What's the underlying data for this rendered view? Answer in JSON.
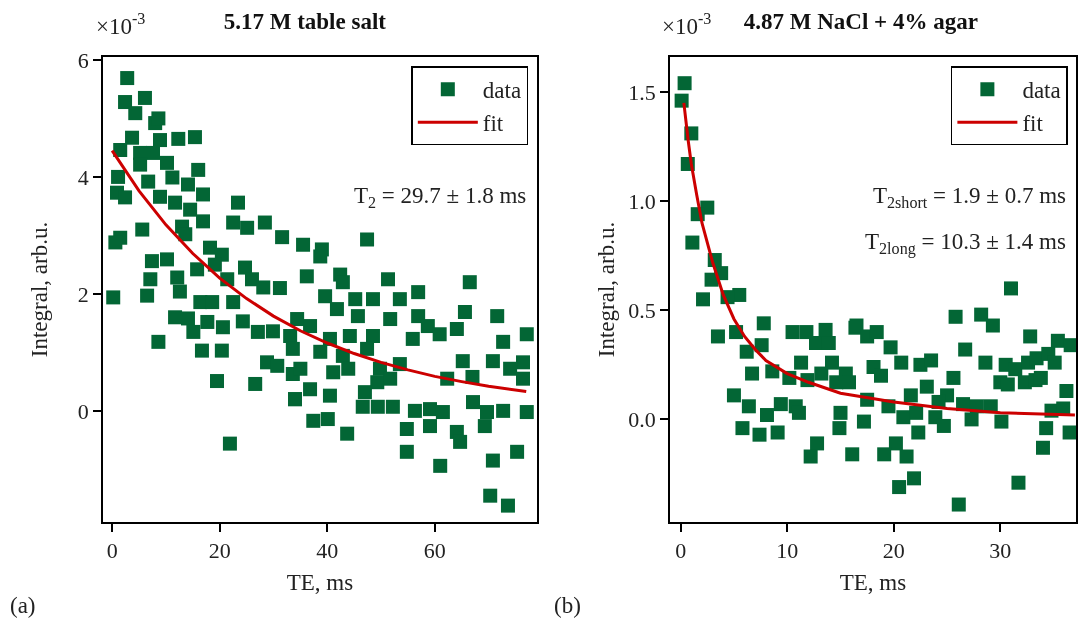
{
  "chart_data": [
    {
      "type": "scatter",
      "title": "5.17 M table salt",
      "xlabel": "TE, ms",
      "ylabel": "Integral, arb.u.",
      "legend": "top right",
      "grid": false,
      "xlim": [
        -1.7,
        79
      ],
      "xticks": [
        0,
        20,
        40,
        60
      ],
      "ylim": [
        -1.9,
        6.05
      ],
      "yticks": [
        0,
        2,
        4,
        6
      ],
      "annotations": [
        "×10$^{-3}$",
        "T$_{2}$ = 29.7 ± 1.8 ms",
        "(a)"
      ],
      "series": [
        {
          "name": "data",
          "marker": "square",
          "color": "#036635",
          "x": [
            2.8,
            2.4,
            6.1,
            4.3,
            8.0,
            8.6,
            3.7,
            1.5,
            5.2,
            8.9,
            12.3,
            15.4,
            7.6,
            10.2,
            5.2,
            1.1,
            11.2,
            16.0,
            0.9,
            2.4,
            6.7,
            8.9,
            11.7,
            14.1,
            16.9,
            23.4,
            14.5,
            16.9,
            13.0,
            22.5,
            25.1,
            28.4,
            31.6,
            13.6,
            1.5,
            5.6,
            0.6,
            18.2,
            20.4,
            7.4,
            10.2,
            15.8,
            19.1,
            24.7,
            7.1,
            12.1,
            21.4,
            26.0,
            0.2,
            6.5,
            12.6,
            28.1,
            31.2,
            16.4,
            18.6,
            22.5,
            11.7,
            14.1,
            17.7,
            15.1,
            20.6,
            24.3,
            27.1,
            29.9,
            33.1,
            8.6,
            16.7,
            20.4,
            28.8,
            30.7,
            33.6,
            19.5,
            26.6,
            34.0,
            21.9,
            47.4,
            35.5,
            39.0,
            38.7,
            66.5,
            36.2,
            42.4,
            42.9,
            51.3,
            56.9,
            39.6,
            45.2,
            48.5,
            53.5,
            71.6,
            41.8,
            45.7,
            51.7,
            56.9,
            58.7,
            65.6,
            34.4,
            36.8,
            77.1,
            64.1,
            60.9,
            55.9,
            40.5,
            44.2,
            48.5,
            72.7,
            33.6,
            38.7,
            42.9,
            47.4,
            49.8,
            53.5,
            65.2,
            70.8,
            76.4,
            35.0,
            41.1,
            43.9,
            49.3,
            51.7,
            62.3,
            67.0,
            74.0,
            76.4,
            36.8,
            40.5,
            34.0,
            47.0,
            49.4,
            46.6,
            52.2,
            56.3,
            59.1,
            61.5,
            67.1,
            69.7,
            72.7,
            77.1,
            40.1,
            37.4,
            59.1,
            64.1,
            69.3,
            43.7,
            54.8,
            64.7,
            54.8,
            61.0,
            70.8,
            75.3,
            70.3,
            73.6
          ],
          "values": [
            5.69,
            5.28,
            5.35,
            5.09,
            4.92,
            5.0,
            4.67,
            4.46,
            4.41,
            4.63,
            4.65,
            4.68,
            4.41,
            4.24,
            4.21,
            4.0,
            3.99,
            4.12,
            3.73,
            3.65,
            3.92,
            3.66,
            3.56,
            3.87,
            3.7,
            3.56,
            3.44,
            3.24,
            3.15,
            3.22,
            3.13,
            3.22,
            2.97,
            3.02,
            2.96,
            3.1,
            2.88,
            2.79,
            2.67,
            2.56,
            2.59,
            2.42,
            2.5,
            2.45,
            2.25,
            2.28,
            2.25,
            2.25,
            1.94,
            1.97,
            2.04,
            2.11,
            2.1,
            1.86,
            1.86,
            1.86,
            1.6,
            1.58,
            1.52,
            1.35,
            1.43,
            1.53,
            1.35,
            1.36,
            1.28,
            1.18,
            1.03,
            1.03,
            0.83,
            0.77,
            0.63,
            0.51,
            0.46,
            0.2,
            -0.56,
            2.93,
            2.84,
            2.76,
            2.64,
            2.2,
            2.3,
            2.33,
            2.2,
            2.25,
            2.03,
            1.96,
            1.91,
            1.91,
            1.91,
            1.62,
            1.74,
            1.62,
            1.57,
            1.62,
            1.45,
            1.69,
            1.57,
            1.45,
            1.31,
            1.4,
            1.31,
            1.23,
            1.23,
            1.28,
            1.28,
            1.18,
            1.06,
            1.01,
            0.94,
            1.06,
            0.72,
            0.8,
            0.85,
            0.85,
            0.83,
            0.72,
            0.66,
            0.72,
            0.49,
            0.55,
            0.55,
            0.58,
            0.72,
            0.55,
            0.37,
            0.26,
            0.2,
            0.32,
            0.07,
            0.07,
            0.07,
            0.0,
            0.03,
            -0.02,
            0.15,
            -0.02,
            0.0,
            -0.02,
            -0.14,
            -0.17,
            -0.26,
            -0.36,
            -0.26,
            -0.39,
            -0.31,
            -0.53,
            -0.7,
            -0.94,
            -0.85,
            -0.7,
            -1.45,
            -1.62
          ]
        },
        {
          "name": "fit",
          "type": "line",
          "color": "#cc0000",
          "x": [
            0,
            5,
            10,
            15,
            20,
            25,
            30,
            35,
            40,
            45,
            50,
            55,
            60,
            65,
            70,
            77
          ],
          "values": [
            4.45,
            3.76,
            3.18,
            2.69,
            2.27,
            1.92,
            1.62,
            1.37,
            1.16,
            0.98,
            0.83,
            0.7,
            0.59,
            0.5,
            0.42,
            0.33
          ]
        }
      ]
    },
    {
      "type": "scatter",
      "title": "4.87 M NaCl + 4% agar",
      "xlabel": "TE, ms",
      "ylabel": "Integral, arb.u.",
      "legend": "top right",
      "grid": false,
      "xlim": [
        -1,
        37.1
      ],
      "xticks": [
        0,
        10,
        20,
        30
      ],
      "ylim": [
        -0.47,
        1.66
      ],
      "yticks": [
        {
          "value": 0,
          "label": "0.0"
        },
        {
          "value": 0.5,
          "label": "0.5"
        },
        {
          "value": 1,
          "label": "1.0"
        },
        {
          "value": 1.5,
          "label": "1.5"
        }
      ],
      "annotations": [
        "×10$^{-3}$",
        "T$_{2short}$ = 1.9 ± 0.7 ms",
        "T$_{2long}$ = 10.3 ± 1.4 ms",
        "(b)"
      ],
      "series": [
        {
          "name": "data",
          "marker": "square",
          "color": "#036635",
          "x": [
            0.37,
            0.09,
            1.0,
            0.67,
            2.5,
            1.6,
            1.1,
            3.2,
            3.8,
            2.9,
            5.5,
            4.4,
            2.1,
            3.5,
            5.2,
            7.8,
            6.2,
            7.6,
            6.7,
            8.6,
            10.2,
            11.3,
            11.9,
            10.5,
            11.8,
            12.7,
            13.9,
            13.6,
            13.2,
            14.2,
            14.6,
            15.5,
            15.8,
            16.4,
            5.0,
            6.4,
            8.1,
            9.4,
            10.8,
            11.1,
            5.8,
            7.4,
            9.1,
            15.0,
            14.9,
            12.8,
            12.2,
            16.1,
            31.0,
            25.8,
            28.2,
            29.3,
            16.5,
            17.5,
            18.4,
            19.7,
            32.8,
            35.4,
            36.6,
            26.7,
            20.7,
            22.5,
            23.5,
            18.1,
            18.8,
            28.6,
            30.5,
            31.4,
            32.6,
            33.4,
            34.5,
            35.1,
            25.6,
            30.0,
            30.7,
            32.3,
            33.3,
            33.8,
            23.1,
            21.6,
            25.0,
            36.2,
            17.5,
            19.5,
            24.2,
            26.5,
            27.8,
            29.1,
            20.9,
            22.1,
            23.9,
            27.3,
            30.1,
            34.8,
            35.9,
            24.7,
            34.3,
            17.2,
            36.5,
            22.3,
            20.2,
            19.1,
            21.2,
            34.0,
            21.9,
            20.5,
            31.7,
            26.1
          ],
          "values": [
            1.54,
            1.46,
            1.31,
            1.17,
            0.97,
            0.94,
            0.81,
            0.73,
            0.67,
            0.64,
            0.57,
            0.56,
            0.55,
            0.38,
            0.4,
            0.44,
            0.31,
            0.34,
            0.21,
            0.22,
            0.19,
            0.26,
            0.18,
            0.4,
            0.4,
            0.35,
            0.35,
            0.41,
            0.21,
            0.26,
            0.17,
            0.21,
            0.17,
            0.42,
            0.11,
            0.06,
            0.02,
            0.07,
            0.06,
            0.03,
            -0.04,
            -0.07,
            -0.06,
            0.03,
            -0.04,
            -0.11,
            -0.17,
            -0.16,
            0.6,
            0.47,
            0.48,
            0.43,
            0.43,
            0.38,
            0.4,
            0.33,
            0.38,
            0.36,
            0.34,
            0.32,
            0.26,
            0.25,
            0.27,
            0.24,
            0.2,
            0.26,
            0.25,
            0.23,
            0.26,
            0.28,
            0.3,
            0.26,
            0.19,
            0.17,
            0.16,
            0.17,
            0.18,
            0.19,
            0.15,
            0.11,
            0.11,
            0.13,
            0.09,
            0.06,
            0.08,
            0.07,
            0.06,
            0.06,
            0.01,
            0.03,
            0.01,
            0.0,
            -0.01,
            0.04,
            0.05,
            -0.03,
            -0.04,
            -0.01,
            -0.06,
            -0.06,
            -0.11,
            -0.16,
            -0.17,
            -0.13,
            -0.27,
            -0.31,
            -0.29,
            -0.39
          ]
        },
        {
          "name": "fit",
          "type": "line",
          "color": "#cc0000",
          "x": [
            0.3,
            0.7,
            1,
            1.5,
            2,
            3,
            4,
            5,
            6,
            7,
            8,
            10,
            12,
            15,
            20,
            25,
            30,
            37
          ],
          "values": [
            1.45,
            1.28,
            1.17,
            1.03,
            0.9,
            0.72,
            0.57,
            0.46,
            0.38,
            0.32,
            0.27,
            0.21,
            0.17,
            0.12,
            0.08,
            0.05,
            0.03,
            0.02
          ]
        }
      ]
    }
  ]
}
